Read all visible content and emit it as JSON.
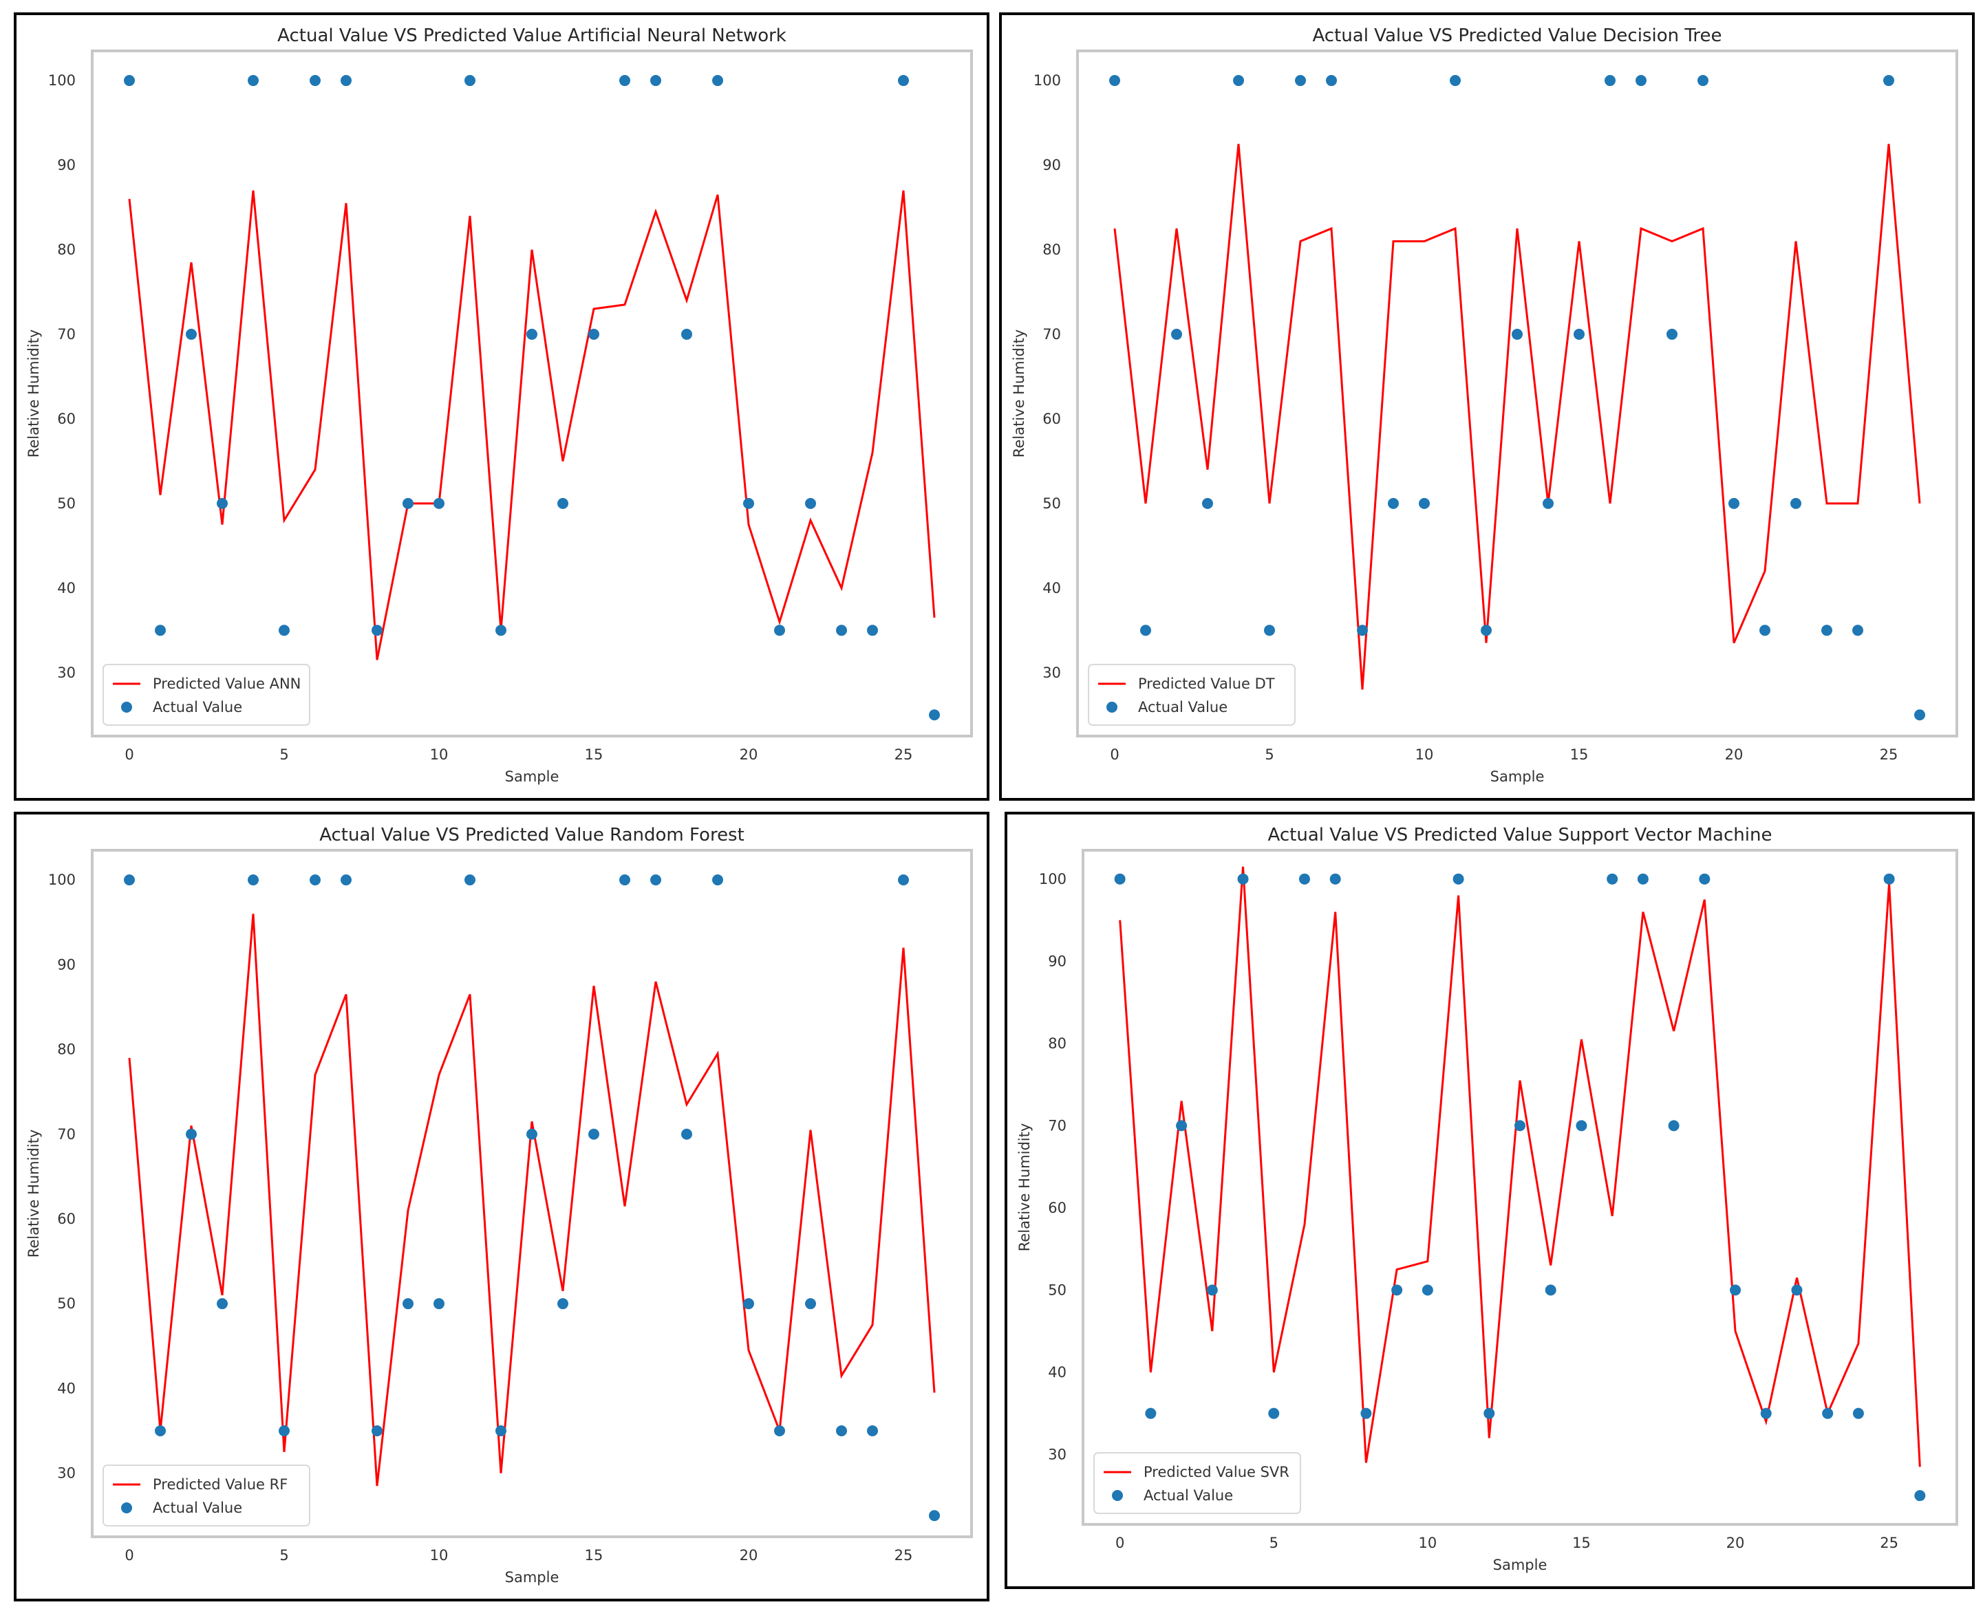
{
  "chart_data": [
    {
      "type": "line+scatter",
      "title": "Actual Value VS Predicted Value Artificial Neural Network",
      "xlabel": "Sample",
      "ylabel": "Relative Humidity",
      "xlim": [
        -1.2,
        27.2
      ],
      "ylim": [
        22.5,
        103.5
      ],
      "xticks": [
        0,
        5,
        10,
        15,
        20,
        25
      ],
      "yticks": [
        30,
        40,
        50,
        60,
        70,
        80,
        90,
        100
      ],
      "x": [
        0,
        1,
        2,
        3,
        4,
        5,
        6,
        7,
        8,
        9,
        10,
        11,
        12,
        13,
        14,
        15,
        16,
        17,
        18,
        19,
        20,
        21,
        22,
        23,
        24,
        25,
        26
      ],
      "series": [
        {
          "name": "Predicted Value ANN",
          "kind": "line",
          "color": "#ff0000",
          "values": [
            86,
            51,
            78.5,
            47.5,
            87,
            48,
            54,
            85.5,
            31.5,
            50,
            50,
            84,
            35,
            80,
            55,
            73,
            73.5,
            84.5,
            74,
            86.5,
            47.5,
            36,
            48,
            40,
            56,
            87,
            36.5
          ]
        },
        {
          "name": "Actual Value",
          "kind": "scatter",
          "color": "#1f77b4",
          "values": [
            100,
            35,
            70,
            50,
            100,
            35,
            100,
            100,
            35,
            50,
            50,
            100,
            35,
            70,
            50,
            70,
            100,
            100,
            70,
            100,
            50,
            35,
            50,
            35,
            35,
            100,
            25
          ]
        }
      ]
    },
    {
      "type": "line+scatter",
      "title": "Actual Value VS Predicted Value Decision Tree",
      "xlabel": "Sample",
      "ylabel": "Relative Humidity",
      "xlim": [
        -1.2,
        27.2
      ],
      "ylim": [
        22.5,
        103.5
      ],
      "xticks": [
        0,
        5,
        10,
        15,
        20,
        25
      ],
      "yticks": [
        30,
        40,
        50,
        60,
        70,
        80,
        90,
        100
      ],
      "x": [
        0,
        1,
        2,
        3,
        4,
        5,
        6,
        7,
        8,
        9,
        10,
        11,
        12,
        13,
        14,
        15,
        16,
        17,
        18,
        19,
        20,
        21,
        22,
        23,
        24,
        25,
        26
      ],
      "series": [
        {
          "name": "Predicted Value DT",
          "kind": "line",
          "color": "#ff0000",
          "values": [
            82.5,
            50,
            82.5,
            54,
            92.5,
            50,
            81,
            82.5,
            28,
            81,
            81,
            82.5,
            33.5,
            82.5,
            50,
            81,
            50,
            82.5,
            81,
            82.5,
            33.5,
            42,
            81,
            50,
            50,
            92.5,
            50
          ]
        },
        {
          "name": "Actual Value",
          "kind": "scatter",
          "color": "#1f77b4",
          "values": [
            100,
            35,
            70,
            50,
            100,
            35,
            100,
            100,
            35,
            50,
            50,
            100,
            35,
            70,
            50,
            70,
            100,
            100,
            70,
            100,
            50,
            35,
            50,
            35,
            35,
            100,
            25
          ]
        }
      ]
    },
    {
      "type": "line+scatter",
      "title": "Actual Value VS Predicted Value Random Forest",
      "xlabel": "Sample",
      "ylabel": "Relative Humidity",
      "xlim": [
        -1.2,
        27.2
      ],
      "ylim": [
        22.5,
        103.5
      ],
      "xticks": [
        0,
        5,
        10,
        15,
        20,
        25
      ],
      "yticks": [
        30,
        40,
        50,
        60,
        70,
        80,
        90,
        100
      ],
      "x": [
        0,
        1,
        2,
        3,
        4,
        5,
        6,
        7,
        8,
        9,
        10,
        11,
        12,
        13,
        14,
        15,
        16,
        17,
        18,
        19,
        20,
        21,
        22,
        23,
        24,
        25,
        26
      ],
      "series": [
        {
          "name": "Predicted Value RF",
          "kind": "line",
          "color": "#ff0000",
          "values": [
            79,
            35,
            71,
            51,
            96,
            32.5,
            77,
            86.5,
            28.5,
            61,
            77,
            86.5,
            30,
            71.5,
            51.5,
            87.5,
            61.5,
            88,
            73.5,
            79.5,
            44.5,
            35,
            70.5,
            41.5,
            47.5,
            92,
            39.5
          ]
        },
        {
          "name": "Actual Value",
          "kind": "scatter",
          "color": "#1f77b4",
          "values": [
            100,
            35,
            70,
            50,
            100,
            35,
            100,
            100,
            35,
            50,
            50,
            100,
            35,
            70,
            50,
            70,
            100,
            100,
            70,
            100,
            50,
            35,
            50,
            35,
            35,
            100,
            25
          ]
        }
      ]
    },
    {
      "type": "line+scatter",
      "title": "Actual Value VS Predicted Value Support Vector Machine",
      "xlabel": "Sample",
      "ylabel": "Relative Humidity",
      "xlim": [
        -1.2,
        27.2
      ],
      "ylim": [
        21.5,
        103.5
      ],
      "xticks": [
        0,
        5,
        10,
        15,
        20,
        25
      ],
      "yticks": [
        30,
        40,
        50,
        60,
        70,
        80,
        90,
        100
      ],
      "x": [
        0,
        1,
        2,
        3,
        4,
        5,
        6,
        7,
        8,
        9,
        10,
        11,
        12,
        13,
        14,
        15,
        16,
        17,
        18,
        19,
        20,
        21,
        22,
        23,
        24,
        25,
        26
      ],
      "series": [
        {
          "name": "Predicted Value SVR",
          "kind": "line",
          "color": "#ff0000",
          "values": [
            95,
            40,
            73,
            45,
            101.5,
            40,
            58,
            96,
            29,
            52.5,
            53.5,
            98,
            32,
            75.5,
            53,
            80.5,
            59,
            96,
            81.5,
            97.5,
            45,
            34,
            51.5,
            35,
            43.5,
            99.5,
            28.5
          ]
        },
        {
          "name": "Actual Value",
          "kind": "scatter",
          "color": "#1f77b4",
          "values": [
            100,
            35,
            70,
            50,
            100,
            35,
            100,
            100,
            35,
            50,
            50,
            100,
            35,
            70,
            50,
            70,
            100,
            100,
            70,
            100,
            50,
            35,
            50,
            35,
            35,
            100,
            25
          ]
        }
      ]
    }
  ]
}
